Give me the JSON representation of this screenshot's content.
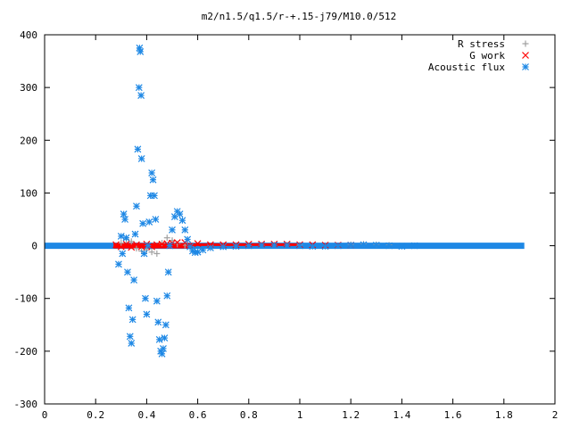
{
  "chart_data": {
    "type": "scatter",
    "title": "m2/n1.5/q1.5/r-+.15-j79/M10.0/512",
    "xlabel": "",
    "ylabel": "",
    "xlim": [
      0,
      2
    ],
    "ylim": [
      -300,
      400
    ],
    "xticks": [
      0,
      0.2,
      0.4,
      0.6,
      0.8,
      1,
      1.2,
      1.4,
      1.6,
      1.8,
      2
    ],
    "xtick_labels": [
      "0",
      "0.2",
      "0.4",
      "0.6",
      "0.8",
      "1",
      "1.2",
      "1.4",
      "1.6",
      "1.8",
      "2"
    ],
    "yticks": [
      400,
      300,
      200,
      100,
      0,
      -100,
      -200,
      -300
    ],
    "ytick_labels": [
      "400",
      "300",
      "200",
      "100",
      "0",
      "-100",
      "-200",
      "-300"
    ],
    "grid": false,
    "legend_position": "top-right",
    "series": [
      {
        "name": "R stress",
        "marker": "plus",
        "color": "#a0a0a0",
        "points": [
          [
            0.3,
            5
          ],
          [
            0.32,
            12
          ],
          [
            0.34,
            8
          ],
          [
            0.36,
            -5
          ],
          [
            0.38,
            -10
          ],
          [
            0.4,
            -8
          ],
          [
            0.42,
            -12
          ],
          [
            0.44,
            -15
          ],
          [
            0.46,
            5
          ],
          [
            0.48,
            15
          ],
          [
            0.5,
            10
          ],
          [
            0.52,
            3
          ],
          [
            0.55,
            1
          ],
          [
            1.0,
            1
          ],
          [
            1.2,
            2
          ],
          [
            1.25,
            3
          ],
          [
            1.3,
            2
          ],
          [
            1.35,
            1
          ]
        ]
      },
      {
        "name": "G work",
        "marker": "cross",
        "color": "#ff0000",
        "points": [
          [
            0.28,
            2
          ],
          [
            0.3,
            -2
          ],
          [
            0.32,
            3
          ],
          [
            0.34,
            -3
          ],
          [
            0.36,
            2
          ],
          [
            0.38,
            -2
          ],
          [
            0.4,
            3
          ],
          [
            0.42,
            -2
          ],
          [
            0.44,
            2
          ],
          [
            0.46,
            3
          ],
          [
            0.48,
            4
          ],
          [
            0.5,
            5
          ],
          [
            0.52,
            6
          ],
          [
            0.55,
            6
          ],
          [
            0.6,
            4
          ],
          [
            0.65,
            2
          ],
          [
            0.7,
            2
          ],
          [
            0.75,
            2
          ],
          [
            0.8,
            3
          ],
          [
            0.85,
            3
          ],
          [
            0.9,
            3
          ],
          [
            0.95,
            3
          ],
          [
            1.0,
            2
          ],
          [
            1.05,
            2
          ],
          [
            1.1,
            1
          ],
          [
            1.15,
            1
          ],
          [
            1.2,
            1
          ]
        ]
      },
      {
        "name": "Acoustic flux",
        "marker": "star",
        "color": "#1e88e5",
        "points": [
          [
            0.29,
            -35
          ],
          [
            0.3,
            18
          ],
          [
            0.305,
            -15
          ],
          [
            0.31,
            60
          ],
          [
            0.315,
            50
          ],
          [
            0.32,
            15
          ],
          [
            0.325,
            -50
          ],
          [
            0.33,
            -118
          ],
          [
            0.335,
            -172
          ],
          [
            0.34,
            -185
          ],
          [
            0.345,
            -140
          ],
          [
            0.35,
            -65
          ],
          [
            0.355,
            22
          ],
          [
            0.36,
            75
          ],
          [
            0.365,
            183
          ],
          [
            0.37,
            300
          ],
          [
            0.372,
            375
          ],
          [
            0.375,
            368
          ],
          [
            0.378,
            285
          ],
          [
            0.38,
            165
          ],
          [
            0.385,
            42
          ],
          [
            0.39,
            -15
          ],
          [
            0.395,
            -100
          ],
          [
            0.4,
            -130
          ],
          [
            0.405,
            0
          ],
          [
            0.41,
            45
          ],
          [
            0.415,
            95
          ],
          [
            0.42,
            138
          ],
          [
            0.425,
            125
          ],
          [
            0.43,
            95
          ],
          [
            0.435,
            50
          ],
          [
            0.44,
            -105
          ],
          [
            0.445,
            -145
          ],
          [
            0.45,
            -178
          ],
          [
            0.455,
            -200
          ],
          [
            0.46,
            -205
          ],
          [
            0.465,
            -195
          ],
          [
            0.47,
            -175
          ],
          [
            0.475,
            -150
          ],
          [
            0.48,
            -95
          ],
          [
            0.485,
            -50
          ],
          [
            0.49,
            0
          ],
          [
            0.5,
            30
          ],
          [
            0.51,
            55
          ],
          [
            0.52,
            65
          ],
          [
            0.53,
            60
          ],
          [
            0.54,
            48
          ],
          [
            0.55,
            30
          ],
          [
            0.56,
            12
          ],
          [
            0.57,
            -2
          ],
          [
            0.58,
            -10
          ],
          [
            0.59,
            -13
          ],
          [
            0.6,
            -12
          ],
          [
            0.62,
            -8
          ],
          [
            0.65,
            -4
          ],
          [
            0.7,
            -2
          ],
          [
            0.75,
            -1
          ],
          [
            0.8,
            0
          ],
          [
            0.85,
            1
          ],
          [
            0.9,
            1
          ],
          [
            0.95,
            1
          ],
          [
            1.0,
            0
          ],
          [
            1.05,
            -1
          ],
          [
            1.1,
            -1
          ],
          [
            1.15,
            0
          ],
          [
            1.2,
            1
          ],
          [
            1.25,
            2
          ],
          [
            1.3,
            1
          ],
          [
            1.35,
            0
          ],
          [
            1.4,
            -1
          ],
          [
            1.45,
            0
          ]
        ]
      }
    ]
  }
}
